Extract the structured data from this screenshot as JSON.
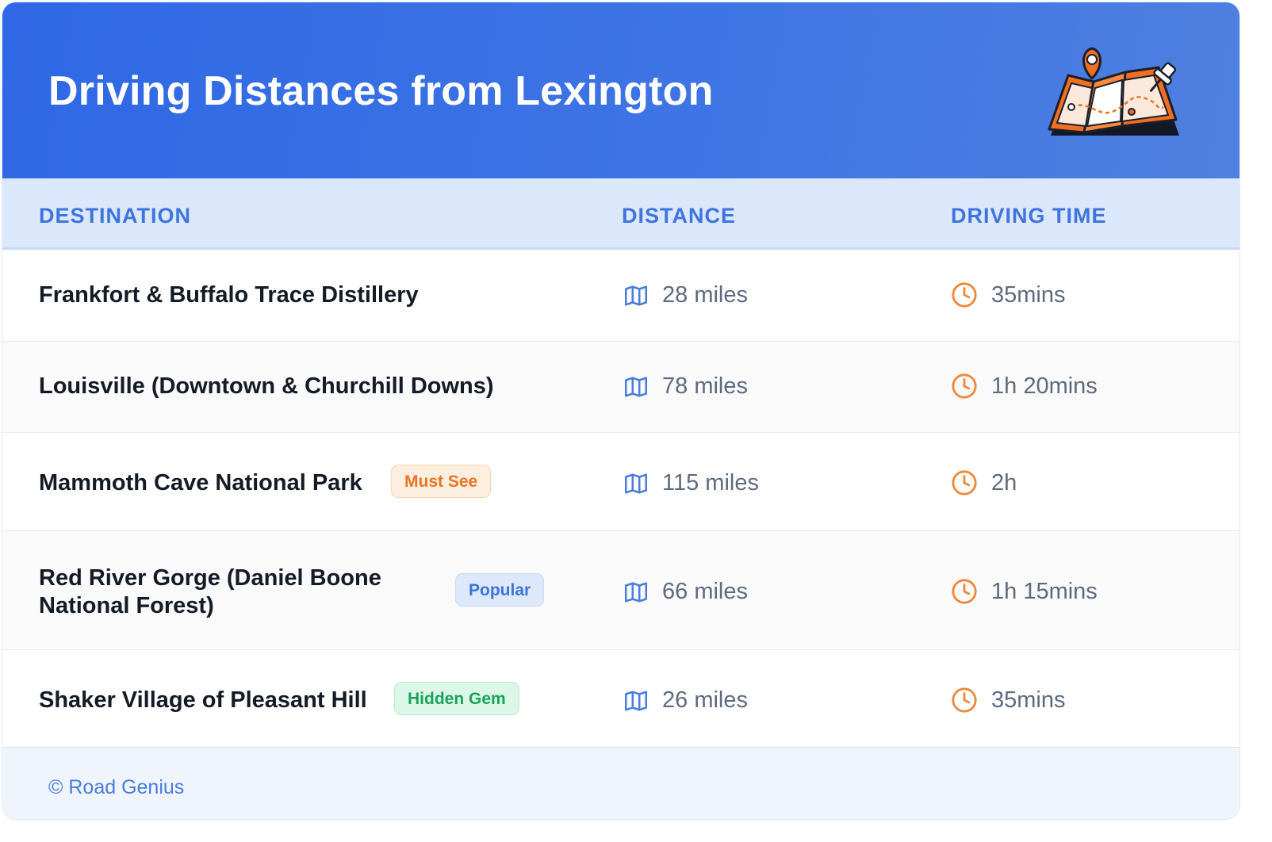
{
  "header": {
    "title": "Driving Distances from Lexington",
    "illustration_icon": "folded-map-with-pins-icon"
  },
  "table": {
    "columns": {
      "destination": "DESTINATION",
      "distance": "DISTANCE",
      "driving_time": "DRIVING TIME"
    },
    "rows": [
      {
        "destination": "Frankfort & Buffalo Trace Distillery",
        "badge": "",
        "distance": "28 miles",
        "time": "35mins"
      },
      {
        "destination": "Louisville (Downtown & Churchill Downs)",
        "badge": "",
        "distance": "78 miles",
        "time": "1h 20mins"
      },
      {
        "destination": "Mammoth Cave National Park",
        "badge": "Must See",
        "distance": "115 miles",
        "time": "2h"
      },
      {
        "destination": "Red River Gorge (Daniel Boone National Forest)",
        "badge": "Popular",
        "distance": "66 miles",
        "time": "1h 15mins"
      },
      {
        "destination": "Shaker Village of Pleasant Hill",
        "badge": "Hidden Gem",
        "distance": "26 miles",
        "time": "35mins"
      }
    ],
    "distance_icon": "map-icon",
    "time_icon": "clock-icon"
  },
  "footer": {
    "credit": "© Road Genius"
  },
  "colors": {
    "header_gradient_start": "#2f68e6",
    "header_gradient_end": "#4f80e0",
    "accent_blue": "#3f74de",
    "badge_must_see": "#ea7424",
    "badge_popular": "#3d74d8",
    "badge_hidden_gem": "#19a45b",
    "clock_orange": "#f0883a"
  }
}
